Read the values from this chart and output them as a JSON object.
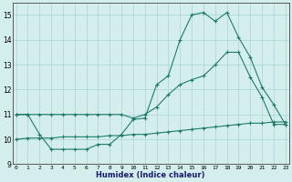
{
  "xlabel": "Humidex (Indice chaleur)",
  "x": [
    0,
    1,
    2,
    3,
    4,
    5,
    6,
    7,
    8,
    9,
    10,
    11,
    12,
    13,
    14,
    15,
    16,
    17,
    18,
    19,
    20,
    21,
    22,
    23
  ],
  "line1": [
    11.0,
    11.0,
    10.2,
    9.6,
    9.6,
    9.6,
    9.6,
    9.8,
    9.8,
    10.2,
    10.8,
    10.85,
    12.2,
    12.55,
    14.0,
    15.0,
    15.1,
    14.75,
    15.1,
    14.1,
    13.3,
    12.1,
    11.4,
    10.6
  ],
  "line2": [
    11.0,
    11.0,
    11.0,
    11.0,
    11.0,
    11.0,
    11.0,
    11.0,
    11.0,
    11.0,
    10.85,
    11.0,
    11.3,
    11.8,
    12.2,
    12.4,
    12.55,
    13.0,
    13.5,
    13.5,
    12.5,
    11.7,
    10.6,
    10.6
  ],
  "line3": [
    10.0,
    10.05,
    10.05,
    10.05,
    10.1,
    10.1,
    10.1,
    10.1,
    10.15,
    10.15,
    10.2,
    10.2,
    10.25,
    10.3,
    10.35,
    10.4,
    10.45,
    10.5,
    10.55,
    10.6,
    10.65,
    10.65,
    10.7,
    10.7
  ],
  "line_color": "#1e7b6a",
  "bg_color": "#d4eeee",
  "grid_color": "#aad4d4",
  "ylim": [
    9.0,
    15.5
  ],
  "yticks": [
    9,
    10,
    11,
    12,
    13,
    14,
    15
  ],
  "xticks": [
    0,
    1,
    2,
    3,
    4,
    5,
    6,
    7,
    8,
    9,
    10,
    11,
    12,
    13,
    14,
    15,
    16,
    17,
    18,
    19,
    20,
    21,
    22,
    23
  ],
  "xlim": [
    -0.3,
    23.3
  ]
}
